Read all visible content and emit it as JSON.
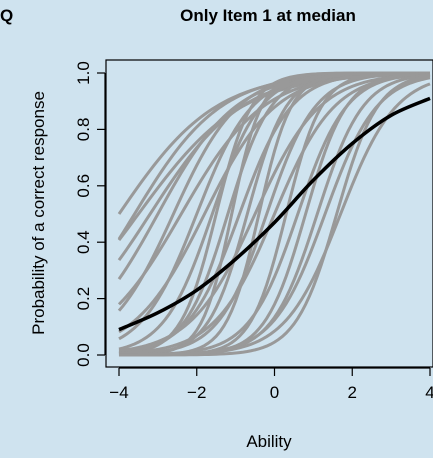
{
  "panel_label": "Q",
  "chart_data": {
    "type": "line",
    "title": "Only Item 1 at median",
    "xlabel": "Ability",
    "ylabel": "Probability of a correct response",
    "xlim": [
      -4,
      4
    ],
    "ylim": [
      0,
      1
    ],
    "x_ticks": [
      -4,
      -2,
      0,
      2,
      4
    ],
    "x_tick_labels": [
      "−4",
      "−2",
      "0",
      "2",
      "4"
    ],
    "y_ticks": [
      0,
      0.2,
      0.4,
      0.6,
      0.8,
      1
    ],
    "y_tick_labels": [
      "0.0",
      "0.2",
      "0.4",
      "0.6",
      "0.8",
      "1.0"
    ],
    "grid": false,
    "highlighted_series": {
      "color": "#000000",
      "x": [
        -4,
        -3,
        -2,
        -1,
        0,
        1,
        2,
        3,
        4
      ],
      "y": [
        0.09,
        0.15,
        0.23,
        0.34,
        0.47,
        0.62,
        0.75,
        0.85,
        0.91
      ]
    },
    "background_series": {
      "color": "#999999",
      "curves": [
        {
          "a": 0.8,
          "b": -4.0
        },
        {
          "a": 0.9,
          "b": -3.6
        },
        {
          "a": 0.75,
          "b": -3.5
        },
        {
          "a": 0.85,
          "b": -3.2
        },
        {
          "a": 1.0,
          "b": -3.0
        },
        {
          "a": 1.2,
          "b": -2.6
        },
        {
          "a": 0.95,
          "b": -2.4
        },
        {
          "a": 1.4,
          "b": -2.0
        },
        {
          "a": 1.1,
          "b": -1.8
        },
        {
          "a": 1.6,
          "b": -1.6
        },
        {
          "a": 2.2,
          "b": -1.5
        },
        {
          "a": 1.8,
          "b": -1.2
        },
        {
          "a": 2.6,
          "b": -1.1
        },
        {
          "a": 1.5,
          "b": -0.9
        },
        {
          "a": 2.0,
          "b": -0.7
        },
        {
          "a": 1.2,
          "b": -0.5
        },
        {
          "a": 2.4,
          "b": -0.4
        },
        {
          "a": 1.6,
          "b": -0.2
        },
        {
          "a": 1.3,
          "b": 0.0
        },
        {
          "a": 2.2,
          "b": 0.3
        },
        {
          "a": 1.6,
          "b": 0.6
        },
        {
          "a": 1.9,
          "b": 0.8
        },
        {
          "a": 1.7,
          "b": 1.1
        },
        {
          "a": 1.5,
          "b": 1.3
        },
        {
          "a": 1.9,
          "b": 1.6
        },
        {
          "a": 1.4,
          "b": 1.7
        }
      ]
    }
  }
}
